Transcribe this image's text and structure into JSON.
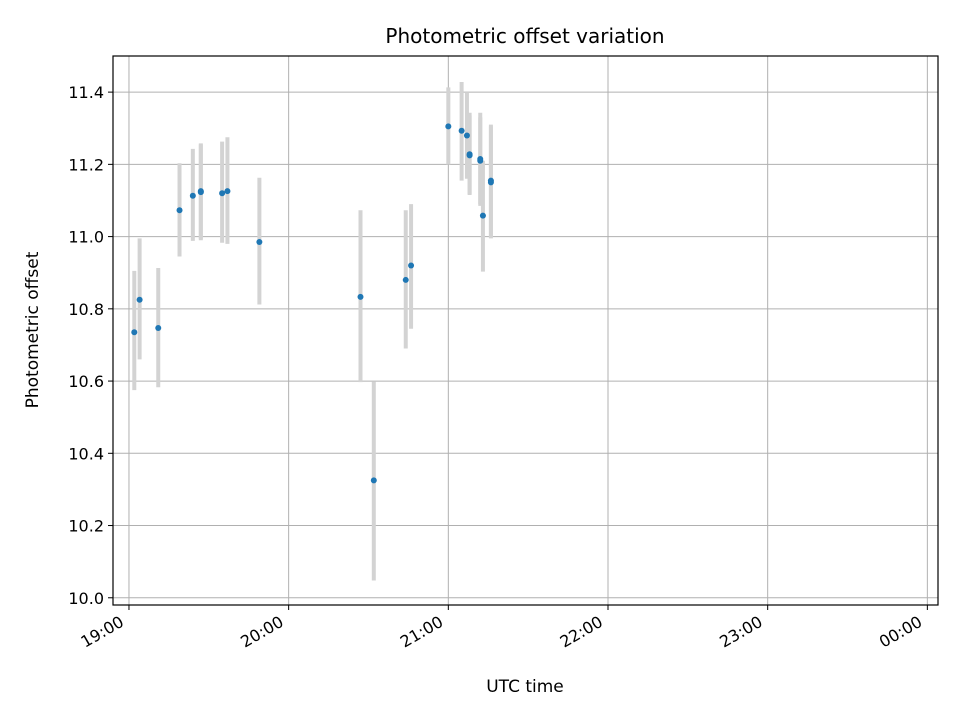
{
  "chart_data": {
    "type": "scatter",
    "title": "Photometric offset variation",
    "xlabel": "UTC time",
    "ylabel": "Photometric offset",
    "x_unit": "UTC time (HH:MM)",
    "xlim": [
      "18:54",
      "00:04"
    ],
    "ylim": [
      9.98,
      11.5
    ],
    "x_ticks": [
      "19:00",
      "20:00",
      "21:00",
      "22:00",
      "23:00",
      "00:00"
    ],
    "y_ticks": [
      10.0,
      10.2,
      10.4,
      10.6,
      10.8,
      11.0,
      11.2,
      11.4
    ],
    "y_tick_labels": [
      "10.0",
      "10.2",
      "10.4",
      "10.6",
      "10.8",
      "11.0",
      "11.2",
      "11.4"
    ],
    "grid": true,
    "point_color": "#1f77b4",
    "errorbar_color": "#d3d3d3",
    "points": [
      {
        "x": "19:02",
        "y": 10.735,
        "ylow": 10.575,
        "yhigh": 10.905
      },
      {
        "x": "19:04",
        "y": 10.825,
        "ylow": 10.66,
        "yhigh": 10.995
      },
      {
        "x": "19:11",
        "y": 10.747,
        "ylow": 10.583,
        "yhigh": 10.913
      },
      {
        "x": "19:19",
        "y": 11.073,
        "ylow": 10.945,
        "yhigh": 11.203
      },
      {
        "x": "19:24",
        "y": 11.113,
        "ylow": 10.988,
        "yhigh": 11.243
      },
      {
        "x": "19:27",
        "y": 11.123,
        "ylow": 10.99,
        "yhigh": 11.255
      },
      {
        "x": "19:27",
        "y": 11.126,
        "ylow": 10.993,
        "yhigh": 11.258
      },
      {
        "x": "19:35",
        "y": 11.12,
        "ylow": 10.983,
        "yhigh": 11.263
      },
      {
        "x": "19:37",
        "y": 11.126,
        "ylow": 10.98,
        "yhigh": 11.275
      },
      {
        "x": "19:49",
        "y": 10.985,
        "ylow": 10.812,
        "yhigh": 11.163
      },
      {
        "x": "20:27",
        "y": 10.833,
        "ylow": 10.597,
        "yhigh": 11.073
      },
      {
        "x": "20:32",
        "y": 10.325,
        "ylow": 10.048,
        "yhigh": 10.598
      },
      {
        "x": "20:44",
        "y": 10.88,
        "ylow": 10.69,
        "yhigh": 11.073
      },
      {
        "x": "20:46",
        "y": 10.92,
        "ylow": 10.745,
        "yhigh": 11.09
      },
      {
        "x": "21:00",
        "y": 11.305,
        "ylow": 11.2,
        "yhigh": 11.413
      },
      {
        "x": "21:05",
        "y": 11.293,
        "ylow": 11.155,
        "yhigh": 11.428
      },
      {
        "x": "21:07",
        "y": 11.28,
        "ylow": 11.16,
        "yhigh": 11.4
      },
      {
        "x": "21:08",
        "y": 11.228,
        "ylow": 11.115,
        "yhigh": 11.343
      },
      {
        "x": "21:08",
        "y": 11.225,
        "ylow": 11.118,
        "yhigh": 11.335
      },
      {
        "x": "21:12",
        "y": 11.21,
        "ylow": 11.085,
        "yhigh": 11.33
      },
      {
        "x": "21:12",
        "y": 11.215,
        "ylow": 11.09,
        "yhigh": 11.343
      },
      {
        "x": "21:13",
        "y": 11.058,
        "ylow": 10.903,
        "yhigh": 11.21
      },
      {
        "x": "21:16",
        "y": 11.155,
        "ylow": 11.0,
        "yhigh": 11.31
      },
      {
        "x": "21:16",
        "y": 11.15,
        "ylow": 10.995,
        "yhigh": 11.305
      }
    ]
  }
}
